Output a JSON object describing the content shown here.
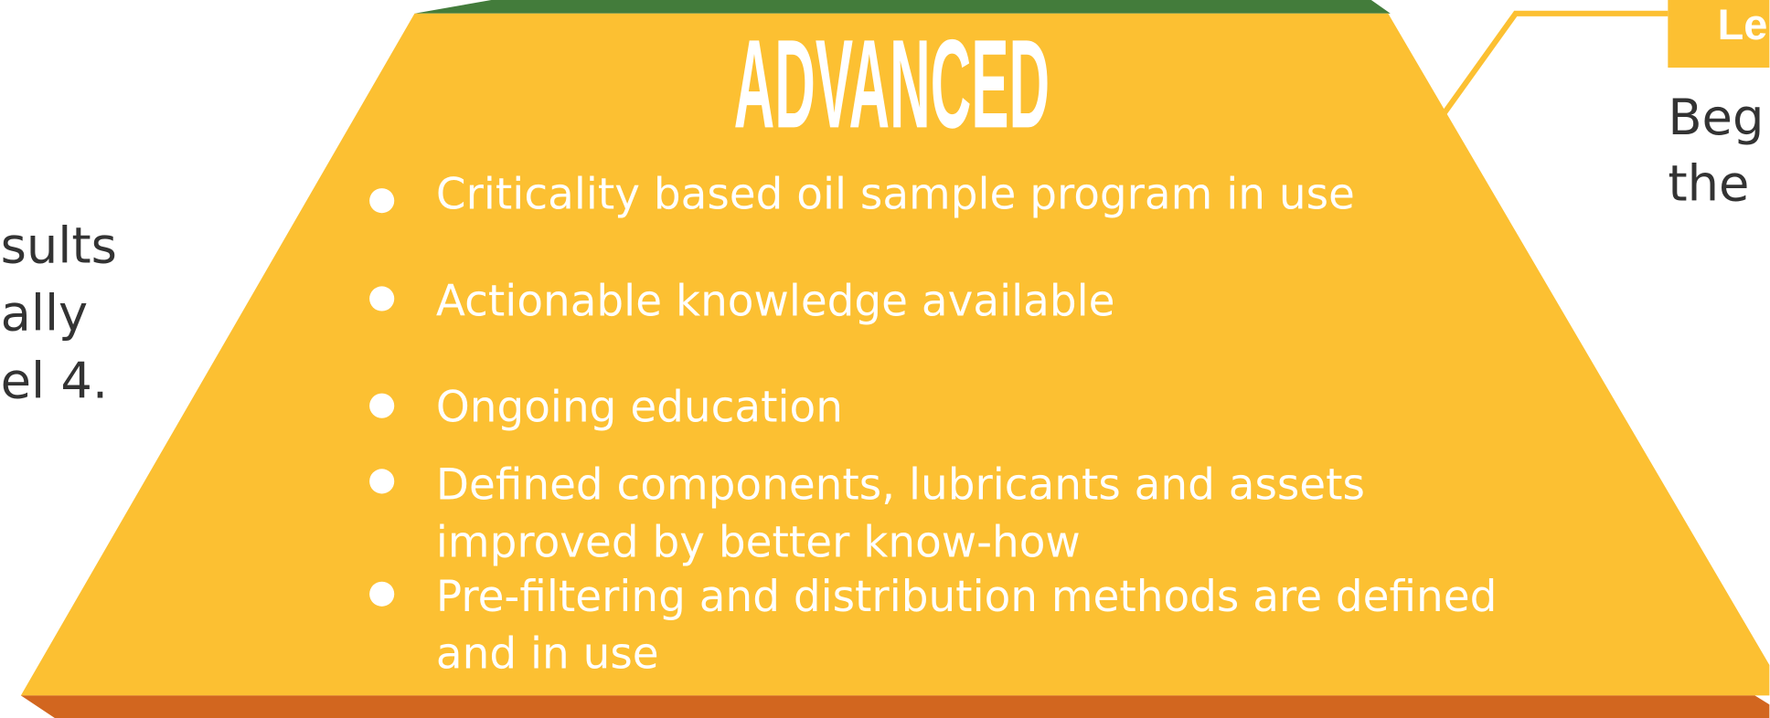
{
  "title": "ADVANCED",
  "bullets": [
    {
      "lines": [
        "Criticality based oil sample program in use"
      ]
    },
    {
      "lines": [
        "Actionable knowledge available"
      ]
    },
    {
      "lines": [
        "Ongoing education"
      ]
    },
    {
      "lines": [
        "Defined components, lubricants and assets",
        "improved by better know-how"
      ]
    },
    {
      "lines": [
        "Pre-filtering and distribution methods are defined",
        "and in use"
      ]
    }
  ],
  "left_text": [
    "sults",
    "ally",
    "el 4."
  ],
  "right_label": "Le",
  "right_text": [
    "Beg",
    "the"
  ]
}
